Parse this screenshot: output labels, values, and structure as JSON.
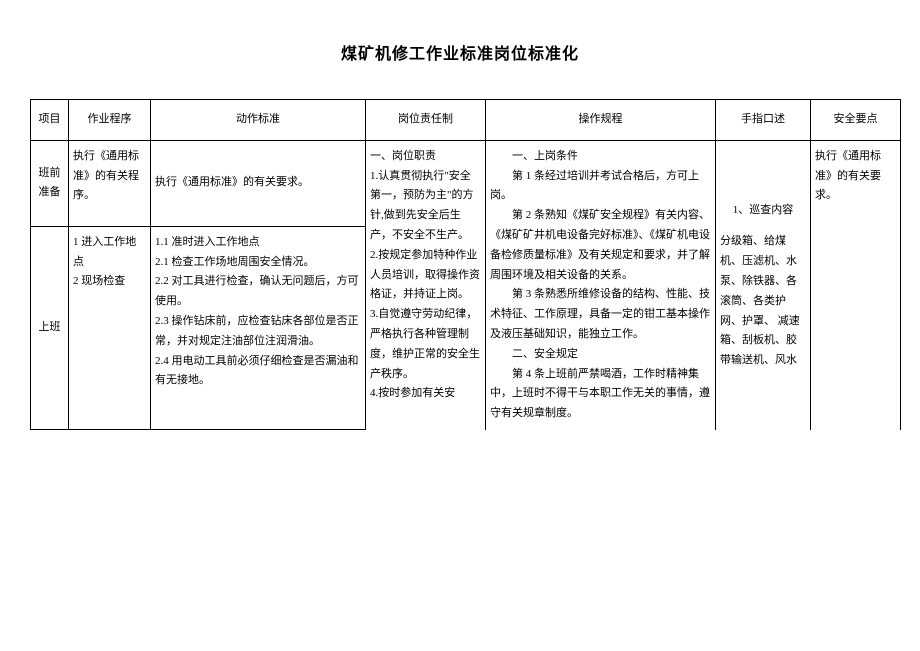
{
  "title": "煤矿机修工作业标准岗位标准化",
  "headers": {
    "col1": "项目",
    "col2": "作业程序",
    "col3": "动作标准",
    "col4": "岗位责任制",
    "col5": "操作规程",
    "col6": "手指口述",
    "col7": "安全要点"
  },
  "row1": {
    "item": "班前准备",
    "proc": "执行《通用标准》的有关程序。",
    "action": "执行《通用标准》的有关要求。",
    "hand": "1、巡查内容",
    "safety": "执行《通用标准》的有关要求。"
  },
  "row2": {
    "item": "上班",
    "proc": "1 进入工作地点\n2 现场检查",
    "action": "1.1 准时进入工作地点\n2.1 检查工作场地周围安全情况。\n2.2 对工具进行检查，确认无问题后，方可使用。\n2.3 操作钻床前，应检查钻床各部位是否正常，并对规定注油部位注润滑油。\n2.4 用电动工具前必须仔细检查是否漏油和有无接地。"
  },
  "resp": {
    "line1": "一、岗位职责",
    "line2": "1.认真贯彻执行\"安全第一，预防为主\"的方针,做到先安全后生产，不安全不生产。",
    "line3": "2.按规定参加特种作业人员培训，取得操作资格证，并持证上岗。",
    "line4": "3.自觉遵守劳动纪律，严格执行各种管理制度，维护正常的安全生产秩序。",
    "line5": "4.按时参加有关安"
  },
  "oper": {
    "line1": "一、上岗条件",
    "line2": "第 1 条经过培训并考试合格后，方可上岗。",
    "line3": "第 2 条熟知《煤矿安全规程》有关内容、《煤矿矿井机电设备完好标准》、《煤矿机电设备检修质量标准》及有关规定和要求，并了解周围环境及相关设备的关系。",
    "line4": "第 3 条熟悉所维修设备的结构、性能、技术特征、工作原理，具备一定的钳工基本操作及液压基础知识，能独立工作。",
    "line5": "二、安全规定",
    "line6": "第 4 条上班前严禁喝酒，工作时精神集中，上班时不得干与本职工作无关的事情，遵守有关规章制度。"
  },
  "hand2": "分级箱、给煤机、压滤机、水泵、除铁器、各滚筒、各类护网、护罩、    减速箱、刮板机、胶带输送机、风水"
}
